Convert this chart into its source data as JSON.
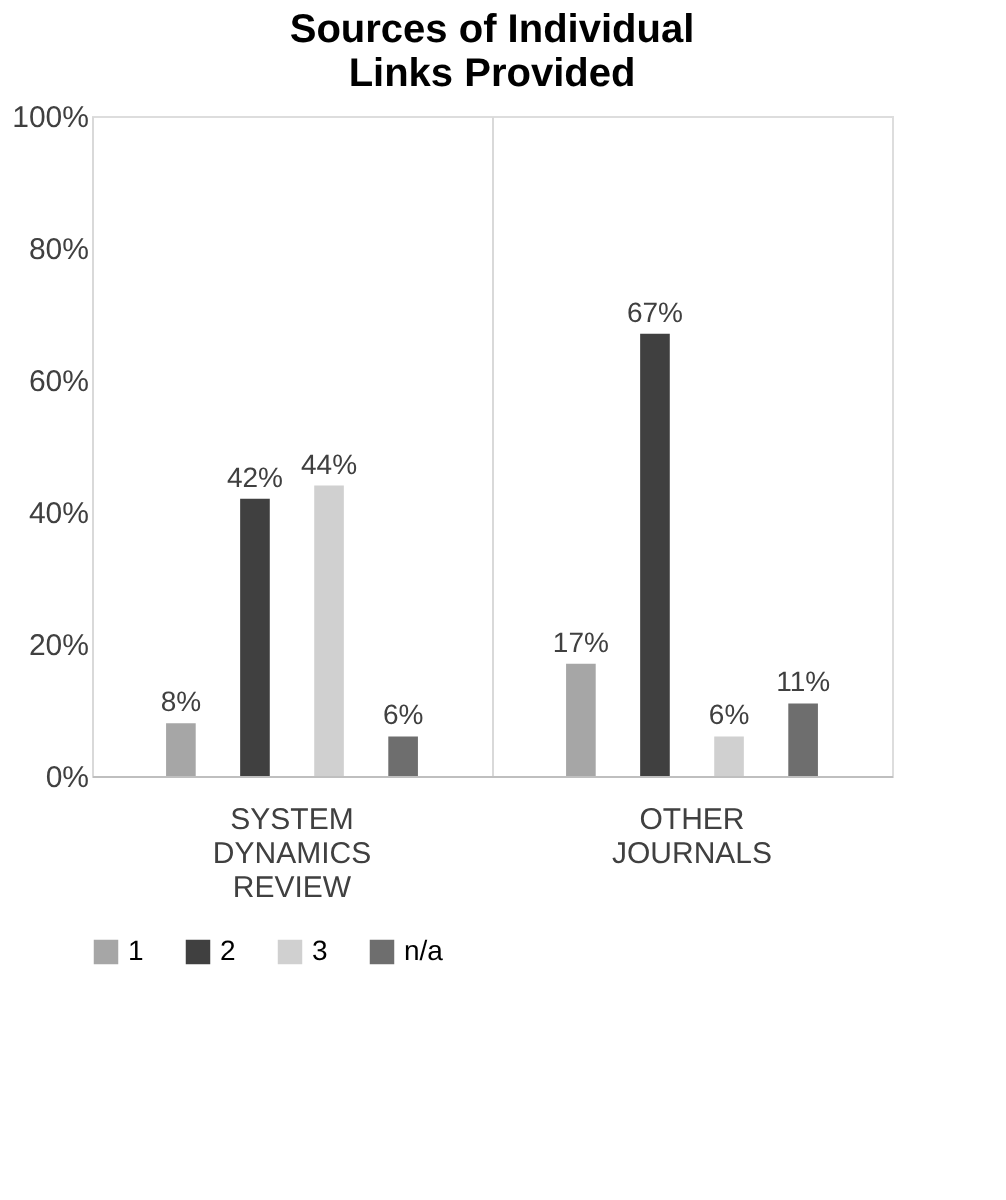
{
  "chart_data": {
    "type": "bar",
    "title": "Sources of Individual Links Provided",
    "categories": [
      "SYSTEM DYNAMICS REVIEW",
      "OTHER JOURNALS"
    ],
    "series": [
      {
        "name": "1",
        "color": "#a6a6a6",
        "values": [
          8,
          17
        ],
        "value_labels": [
          "8%",
          "17%"
        ]
      },
      {
        "name": "2",
        "color": "#404040",
        "values": [
          42,
          67
        ],
        "value_labels": [
          "42%",
          "67%"
        ]
      },
      {
        "name": "3",
        "color": "#d0d0d0",
        "values": [
          44,
          6
        ],
        "value_labels": [
          "44%",
          "6%"
        ]
      },
      {
        "name": "n/a",
        "color": "#6e6e6e",
        "values": [
          6,
          11
        ],
        "value_labels": [
          "6%",
          "11%"
        ]
      }
    ],
    "ylim": [
      0,
      100
    ],
    "yticks": [
      {
        "value": 0,
        "label": "0%"
      },
      {
        "value": 20,
        "label": "20%"
      },
      {
        "value": 40,
        "label": "40%"
      },
      {
        "value": 60,
        "label": "60%"
      },
      {
        "value": 80,
        "label": "80%"
      },
      {
        "value": 100,
        "label": "100%"
      }
    ],
    "grid": "x",
    "legend": "bottom"
  }
}
